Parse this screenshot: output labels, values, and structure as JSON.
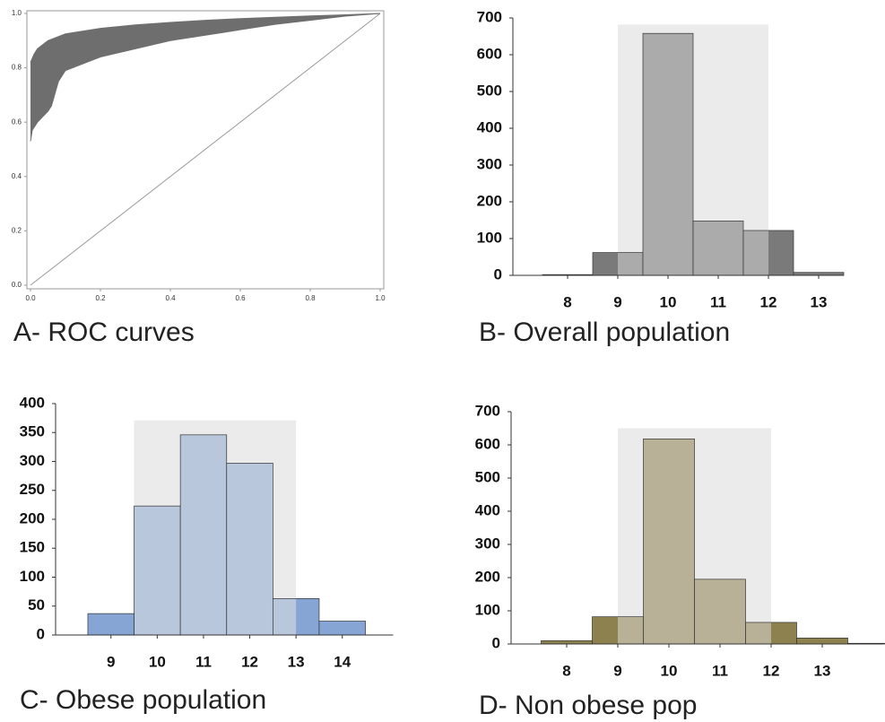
{
  "chart_data": [
    {
      "type": "line",
      "title": "A- ROC curves",
      "xlim": [
        0,
        1
      ],
      "ylim": [
        0,
        1
      ],
      "xticks": [
        {
          "value": 0,
          "label": "0.0"
        },
        0.2,
        0.4,
        0.6,
        0.8,
        {
          "value": 1,
          "label": "1.0"
        }
      ],
      "yticks": [
        {
          "value": 0,
          "label": "0.0"
        },
        0.2,
        0.4,
        0.6,
        0.8,
        {
          "value": 1,
          "label": "1.0"
        }
      ],
      "color": "#6e6e6e",
      "series": [
        {
          "x": [
            0,
            0.01,
            0.02,
            0.05,
            0.1,
            0.2,
            0.3,
            0.4,
            0.5,
            0.6,
            0.7,
            0.8,
            0.9,
            1
          ],
          "values": [
            0.82,
            0.85,
            0.87,
            0.9,
            0.925,
            0.945,
            0.958,
            0.967,
            0.975,
            0.981,
            0.986,
            0.991,
            0.995,
            1
          ]
        },
        {
          "x": [
            0,
            0.005,
            0.02,
            0.05,
            0.06,
            0.08,
            0.1,
            0.2,
            0.3,
            0.4,
            0.5,
            0.6,
            0.7,
            0.8,
            0.9,
            1
          ],
          "values": [
            0.53,
            0.57,
            0.6,
            0.64,
            0.66,
            0.75,
            0.79,
            0.84,
            0.87,
            0.9,
            0.92,
            0.94,
            0.96,
            0.975,
            0.99,
            1
          ]
        }
      ]
    },
    {
      "type": "histogram",
      "title": "B- Overall population",
      "bins": [
        7.5,
        8.5,
        9.5,
        10.5,
        11.5,
        12.5,
        13.5
      ],
      "values": [
        2,
        62,
        658,
        148,
        122,
        8
      ],
      "xlim": [
        7,
        13.5
      ],
      "ylim": [
        0,
        700
      ],
      "xticks": [
        8,
        9,
        10,
        11,
        12,
        13
      ],
      "yticks": [
        0,
        100,
        200,
        300,
        400,
        500,
        600,
        700
      ],
      "color": "#7a7a7a",
      "highlight_color": "#ababab",
      "shade_x": [
        9,
        12
      ],
      "shade_top": 682,
      "shade_color": "#ebebeb"
    },
    {
      "type": "histogram",
      "title": "C- Obese population",
      "bins": [
        8.5,
        9.5,
        10.5,
        11.5,
        12.5,
        13.5,
        14.5
      ],
      "values": [
        37,
        223,
        346,
        297,
        63,
        24
      ],
      "xlim": [
        7.9,
        15.1
      ],
      "ylim": [
        0,
        400
      ],
      "xticks": [
        9,
        10,
        11,
        12,
        13,
        14
      ],
      "yticks": [
        0,
        50,
        100,
        150,
        200,
        250,
        300,
        350,
        400
      ],
      "color": "#86a5d4",
      "highlight_color": "#b8c7dc",
      "shade_x": [
        9.5,
        13
      ],
      "shade_top": 371,
      "shade_color": "#ebebeb"
    },
    {
      "type": "histogram",
      "title": "D- Non obese pop",
      "bins": [
        7.5,
        8.5,
        9.5,
        10.5,
        11.5,
        12.5,
        13.5,
        14.5
      ],
      "values": [
        10,
        82,
        618,
        195,
        65,
        18,
        2
      ],
      "xlim": [
        7,
        14.2
      ],
      "ylim": [
        0,
        700
      ],
      "xticks": [
        8,
        9,
        10,
        11,
        12,
        13
      ],
      "yticks": [
        0,
        100,
        200,
        300,
        400,
        500,
        600,
        700
      ],
      "color": "#8c814f",
      "highlight_color": "#b8b197",
      "shade_x": [
        9,
        12
      ],
      "shade_top": 650,
      "shade_color": "#ebebeb"
    }
  ]
}
